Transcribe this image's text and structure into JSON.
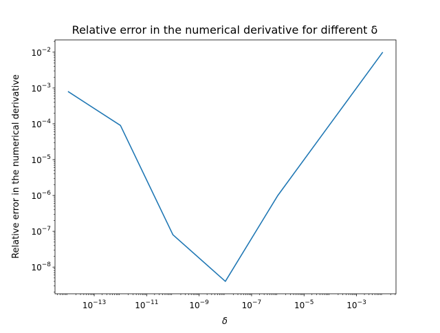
{
  "chart_data": {
    "type": "line",
    "title": "Relative error in the numerical derivative for different δ",
    "xlabel": "δ",
    "ylabel": "Relative error in the numerical derivative",
    "xscale": "log",
    "yscale": "log",
    "xlim": [
      3.2e-15,
      0.032
    ],
    "ylim": [
      1.8e-09,
      0.022
    ],
    "grid": false,
    "x_ticks": [
      {
        "base": "10",
        "exp": "−13",
        "value": 1e-13
      },
      {
        "base": "10",
        "exp": "−11",
        "value": 1e-11
      },
      {
        "base": "10",
        "exp": "−9",
        "value": 1e-09
      },
      {
        "base": "10",
        "exp": "−7",
        "value": 1e-07
      },
      {
        "base": "10",
        "exp": "−5",
        "value": 1e-05
      },
      {
        "base": "10",
        "exp": "−3",
        "value": 0.001
      }
    ],
    "y_ticks": [
      {
        "base": "10",
        "exp": "−8",
        "value": 1e-08
      },
      {
        "base": "10",
        "exp": "−7",
        "value": 1e-07
      },
      {
        "base": "10",
        "exp": "−6",
        "value": 1e-06
      },
      {
        "base": "10",
        "exp": "−5",
        "value": 1e-05
      },
      {
        "base": "10",
        "exp": "−4",
        "value": 0.0001
      },
      {
        "base": "10",
        "exp": "−3",
        "value": 0.001
      },
      {
        "base": "10",
        "exp": "−2",
        "value": 0.01
      }
    ],
    "series": [
      {
        "color": "#1f77b4",
        "x": [
          1e-14,
          1e-12,
          1e-10,
          1e-08,
          1e-06,
          0.0001,
          0.01
        ],
        "y": [
          0.0008,
          9e-05,
          8e-08,
          4e-09,
          1e-06,
          0.0001,
          0.01
        ]
      }
    ]
  }
}
